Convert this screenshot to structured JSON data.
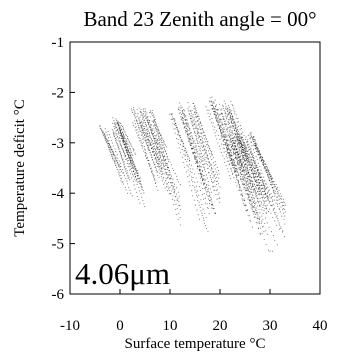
{
  "chart_data": {
    "type": "scatter",
    "title": "Band 23 Zenith angle = 00°",
    "xlabel": "Surface temperature °C",
    "ylabel": "Temperature deficit °C",
    "xlim": [
      -10,
      40
    ],
    "ylim": [
      -6,
      -1
    ],
    "x_ticks": [
      "-10",
      "0",
      "10",
      "20",
      "30",
      "40"
    ],
    "y_ticks": [
      "-1",
      "-2",
      "-3",
      "-4",
      "-5",
      "-6"
    ],
    "annotation": "4.06μm",
    "grid": false,
    "color": "#000000",
    "trace_clusters": [
      {
        "x_start": -4,
        "x_end": 4,
        "y_top": -2.5,
        "y_bottom": -4.3,
        "count": 22
      },
      {
        "x_start": 2,
        "x_end": 11,
        "y_top": -2.3,
        "y_bottom": -4.5,
        "count": 26
      },
      {
        "x_start": 10,
        "x_end": 19,
        "y_top": -2.2,
        "y_bottom": -4.6,
        "count": 28
      },
      {
        "x_start": 17,
        "x_end": 27,
        "y_top": -2.1,
        "y_bottom": -4.8,
        "count": 32
      },
      {
        "x_start": 21,
        "x_end": 32,
        "y_top": -2.8,
        "y_bottom": -5.0,
        "count": 36
      }
    ]
  }
}
